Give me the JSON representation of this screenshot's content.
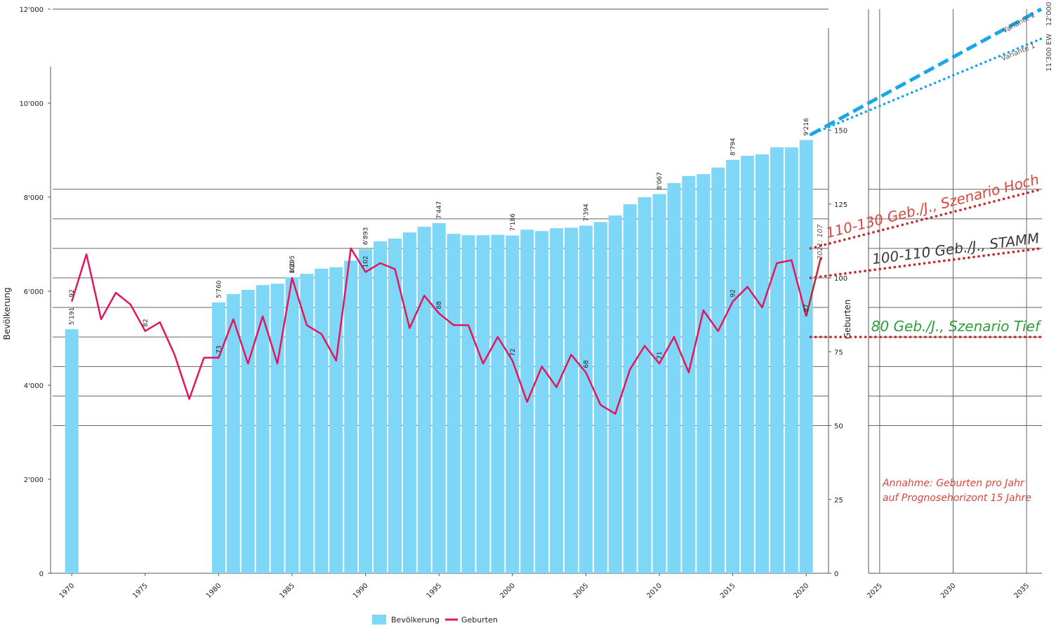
{
  "chart_data": {
    "type": "bar_line_projection",
    "x_label": null,
    "y_label": "Bevölkerung",
    "y2_label": "Geburten",
    "xlim": [
      1968.7,
      2036
    ],
    "xticks": [
      1970,
      1975,
      1980,
      1985,
      1990,
      1995,
      2000,
      2005,
      2010,
      2015,
      2020,
      2025,
      2030,
      2035
    ],
    "ylim": [
      0,
      12000
    ],
    "yticks": [
      0,
      {
        "value": 2000,
        "label": "2'000"
      },
      {
        "value": 4000,
        "label": "4'000"
      },
      {
        "value": 6000,
        "label": "6'000"
      },
      {
        "value": 8000,
        "label": "8'000"
      },
      {
        "value": 10000,
        "label": "10'000"
      },
      {
        "value": 12000,
        "label": "12'000"
      }
    ],
    "y2lim": [
      0,
      191
    ],
    "y2ticks": [
      0,
      25,
      50,
      75,
      100,
      125,
      150
    ],
    "y2grid": [
      50,
      60,
      70,
      80,
      90,
      100,
      110,
      120,
      130
    ],
    "series": [
      {
        "name": "Bevölkerung",
        "kind": "bar",
        "color": "#7fd7f7",
        "x": [
          1970,
          1971,
          1972,
          1973,
          1974,
          1975,
          1976,
          1977,
          1978,
          1979,
          1980,
          1981,
          1982,
          1983,
          1984,
          1985,
          1986,
          1987,
          1988,
          1989,
          1990,
          1991,
          1992,
          1993,
          1994,
          1995,
          1996,
          1997,
          1998,
          1999,
          2000,
          2001,
          2002,
          2003,
          2004,
          2005,
          2006,
          2007,
          2008,
          2009,
          2010,
          2011,
          2012,
          2013,
          2014,
          2015,
          2016,
          2017,
          2018,
          2019,
          2020
        ],
        "values": [
          5191,
          null,
          null,
          null,
          null,
          null,
          null,
          null,
          null,
          null,
          5760,
          5940,
          6030,
          6130,
          6160,
          6295,
          6370,
          6480,
          6510,
          6650,
          6893,
          7060,
          7120,
          7250,
          7370,
          7447,
          7220,
          7190,
          7190,
          7200,
          7186,
          7310,
          7280,
          7340,
          7350,
          7394,
          7470,
          7610,
          7850,
          8000,
          8067,
          8300,
          8450,
          8490,
          8630,
          8794,
          8880,
          8910,
          9060,
          9060,
          9216
        ],
        "value_labels": [
          "5'191",
          null,
          null,
          null,
          null,
          null,
          null,
          null,
          null,
          null,
          "5'760",
          null,
          null,
          null,
          null,
          "6'295",
          null,
          null,
          null,
          null,
          "6'893",
          null,
          null,
          null,
          null,
          "7'447",
          null,
          null,
          null,
          null,
          "7'186",
          null,
          null,
          null,
          null,
          "7'394",
          null,
          null,
          null,
          null,
          "8'067",
          null,
          null,
          null,
          null,
          "8'794",
          null,
          null,
          null,
          null,
          "9'216"
        ]
      },
      {
        "name": "Geburten",
        "kind": "line",
        "axis": "y2",
        "color": "#e2165e",
        "last_segment_color": "#c0282d",
        "x": [
          1970,
          1971,
          1972,
          1973,
          1974,
          1975,
          1976,
          1977,
          1978,
          1979,
          1980,
          1981,
          1982,
          1983,
          1984,
          1985,
          1986,
          1987,
          1988,
          1989,
          1990,
          1991,
          1992,
          1993,
          1994,
          1995,
          1996,
          1997,
          1998,
          1999,
          2000,
          2001,
          2002,
          2003,
          2004,
          2005,
          2006,
          2007,
          2008,
          2009,
          2010,
          2011,
          2012,
          2013,
          2014,
          2015,
          2016,
          2017,
          2018,
          2019,
          2020,
          2021
        ],
        "values": [
          92,
          108,
          86,
          95,
          91,
          82,
          85,
          74,
          59,
          73,
          73,
          86,
          71,
          87,
          71,
          100,
          84,
          81,
          72,
          110,
          102,
          105,
          103,
          83,
          94,
          88,
          84,
          84,
          71,
          80,
          72,
          58,
          70,
          63,
          74,
          68,
          57,
          54,
          69,
          77,
          71,
          80,
          68,
          89,
          82,
          92,
          97,
          90,
          105,
          106,
          87,
          107
        ],
        "value_labels": [
          "92",
          null,
          null,
          null,
          null,
          "82",
          null,
          null,
          null,
          null,
          "73",
          null,
          null,
          null,
          null,
          "100",
          null,
          null,
          null,
          null,
          "102",
          null,
          null,
          null,
          null,
          "88",
          null,
          null,
          null,
          null,
          "72",
          null,
          null,
          null,
          null,
          "68",
          null,
          null,
          null,
          null,
          "71",
          null,
          null,
          null,
          null,
          "92",
          null,
          null,
          null,
          null,
          "87",
          null
        ]
      }
    ],
    "projections": [
      {
        "label": "Variante 2",
        "axis": "y",
        "style": "dashed",
        "color": "#1aa7e8",
        "x": [
          2020.3,
          2036
        ],
        "values": [
          9330,
          12000
        ]
      },
      {
        "label": "Variante 1",
        "axis": "y",
        "style": "dotted",
        "color": "#1aa7e8",
        "x": [
          2020.3,
          2036
        ],
        "values": [
          9330,
          11370
        ]
      },
      {
        "label": "110-130 Geb./J., Szenario Hoch",
        "label_color": "#d9453c",
        "axis": "y2",
        "style": "dotted",
        "color": "#c8282e",
        "x": [
          2020.3,
          2036
        ],
        "values": [
          110,
          130
        ]
      },
      {
        "label": "100-110 Geb./J., STAMM",
        "label_color": "#3a3a3a",
        "axis": "y2",
        "style": "dotted",
        "color": "#c8282e",
        "x": [
          2020.3,
          2036
        ],
        "values": [
          100,
          110
        ]
      },
      {
        "label": "80 Geb./J., Szenario Tief",
        "label_color": "#2e9e3a",
        "axis": "y2",
        "style": "dotted",
        "color": "#c8282e",
        "x": [
          2020.3,
          2036
        ],
        "values": [
          80,
          80
        ]
      }
    ],
    "annotations": [
      "12'000",
      "11'300 EW",
      "2021: 107",
      "Annahme: Geburten pro Jahr",
      "auf Prognosehorizont 15 Jahre"
    ]
  }
}
